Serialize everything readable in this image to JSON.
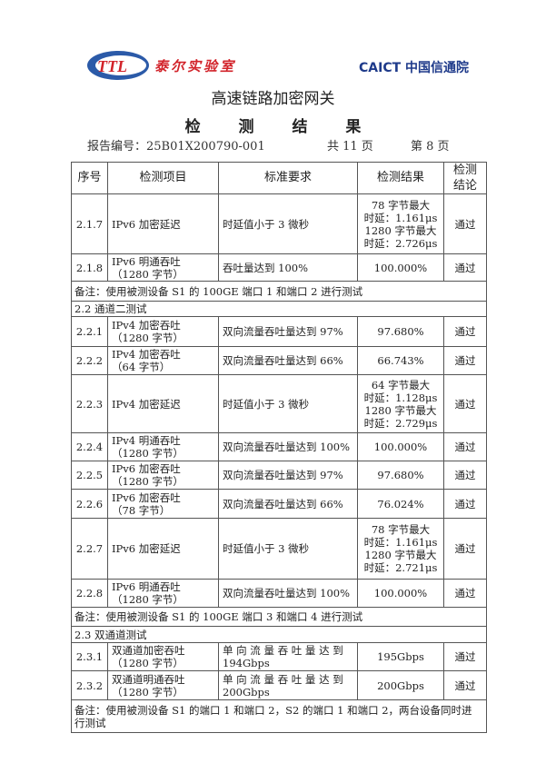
{
  "header": {
    "logo_left": "TTL泰尔实验室",
    "logo_right": "CAICT中国信通院",
    "title": "高速链路加密网关",
    "subtitle": "检 测 结 果",
    "report_no": "报告编号：25B01X200790-001",
    "total_pages": "共 11 页",
    "page": "第 8 页"
  },
  "table": {
    "headers": [
      "序号",
      "检测项目",
      "标准要求",
      "检测结果",
      "检测结论"
    ],
    "rows": [
      {
        "type": "row",
        "no": "2.1.7",
        "item": "IPv6 加密延迟",
        "req": "时延值小于 3 微秒",
        "result": "78 字节最大\n时延：1.161μs\n1280 字节最大\n时延：2.726μs",
        "concl": "通过",
        "h": 66
      },
      {
        "type": "row",
        "no": "2.1.8",
        "item": "IPv6 明通吞吐\n（1280 字节）",
        "req": "吞吐量达到 100%",
        "result": "100.000%",
        "concl": "通过",
        "h": 30
      },
      {
        "type": "note",
        "text": "备注：使用被测设备 S1 的 100GE 端口 1 和端口 2 进行测试",
        "h": 22
      },
      {
        "type": "note",
        "text": "2.2 通道二测试",
        "h": 17
      },
      {
        "type": "row",
        "no": "2.2.1",
        "item": "IPv4 加密吞吐\n（1280 字节）",
        "req": "双向流量吞吐量达到 97%",
        "result": "97.680%",
        "concl": "通过",
        "h": 33
      },
      {
        "type": "row",
        "no": "2.2.2",
        "item": "IPv4 加密吞吐\n（64 字节）",
        "req": "双向流量吞吐量达到 66%",
        "result": "66.743%",
        "concl": "通过",
        "h": 31
      },
      {
        "type": "row",
        "no": "2.2.3",
        "item": "IPv4 加密延迟",
        "req": "时延值小于 3 微秒",
        "result": "64 字节最大\n时延：1.128μs\n1280 字节最大\n时延：2.729μs",
        "concl": "通过",
        "h": 64
      },
      {
        "type": "row",
        "no": "2.2.4",
        "item": "IPv4 明通吞吐\n（1280 字节）",
        "req": "双向流量吞吐量达到 100%",
        "result": "100.000%",
        "concl": "通过",
        "h": 31
      },
      {
        "type": "row",
        "no": "2.2.5",
        "item": "IPv6 加密吞吐\n（1280 字节）",
        "req": "双向流量吞吐量达到 97%",
        "result": "97.680%",
        "concl": "通过",
        "h": 31
      },
      {
        "type": "row",
        "no": "2.2.6",
        "item": "IPv6 加密吞吐\n（78 字节）",
        "req": "双向流量吞吐量达到 66%",
        "result": "76.024%",
        "concl": "通过",
        "h": 32
      },
      {
        "type": "row",
        "no": "2.2.7",
        "item": "IPv6 加密延迟",
        "req": "时延值小于 3 微秒",
        "result": "78 字节最大\n时延：1.161μs\n1280 字节最大\n时延：2.721μs",
        "concl": "通过",
        "h": 67
      },
      {
        "type": "row",
        "no": "2.2.8",
        "item": "IPv6 明通吞吐\n（1280 字节）",
        "req": "双向流量吞吐量达到 100%",
        "result": "100.000%",
        "concl": "通过",
        "h": 31
      },
      {
        "type": "note",
        "text": "备注：使用被测设备 S1 的 100GE 端口 3 和端口 4 进行测试",
        "h": 21
      },
      {
        "type": "note",
        "text": "2.3 双通道测试",
        "h": 18
      },
      {
        "type": "row",
        "no": "2.3.1",
        "item": "双通道加密吞吐\n（1280 字节）",
        "req": "单 向 流 量 吞 吐 量 达 到\n194Gbps",
        "result": "195Gbps",
        "concl": "通过",
        "h": 31
      },
      {
        "type": "row",
        "no": "2.3.2",
        "item": "双通道明通吞吐\n（1280 字节）",
        "req": "单 向 流 量 吞 吐 量 达 到\n200Gbps",
        "result": "200Gbps",
        "concl": "通过",
        "h": 32
      },
      {
        "type": "note",
        "text": "备注：使用被测设备 S1 的端口 1 和端口 2，S2 的端口 1 和端口 2，两台设备同时进行测试",
        "h": 36
      }
    ]
  }
}
